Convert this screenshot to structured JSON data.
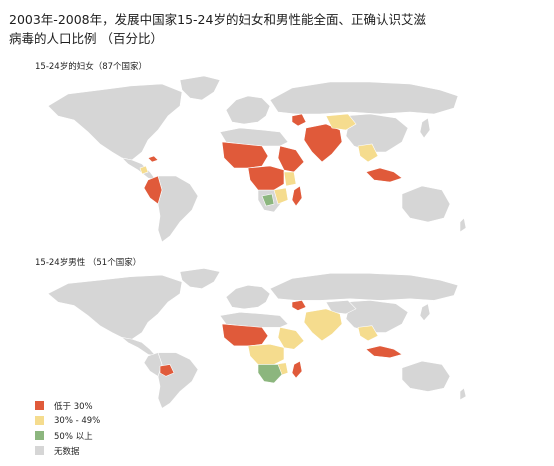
{
  "title": "2003年-2008年，发展中国家15-24岁的妇女和男性能全面、正确认识艾滋病毒的人口比例 （百分比）",
  "colors": {
    "low": "#e05a3a",
    "mid": "#f5dc8e",
    "high": "#8cb67e",
    "none": "#d6d6d6",
    "border": "#ffffff"
  },
  "maps": [
    {
      "subtitle": "15-24岁的妇女（87个国家）"
    },
    {
      "subtitle": "15-24岁男性 （51个国家）"
    }
  ],
  "legend": [
    {
      "label": "低于 30%",
      "color": "#e05a3a"
    },
    {
      "label": "30% - 49%",
      "color": "#f5dc8e"
    },
    {
      "label": "50% 以上",
      "color": "#8cb67e"
    },
    {
      "label": "无数据",
      "color": "#d6d6d6"
    }
  ]
}
